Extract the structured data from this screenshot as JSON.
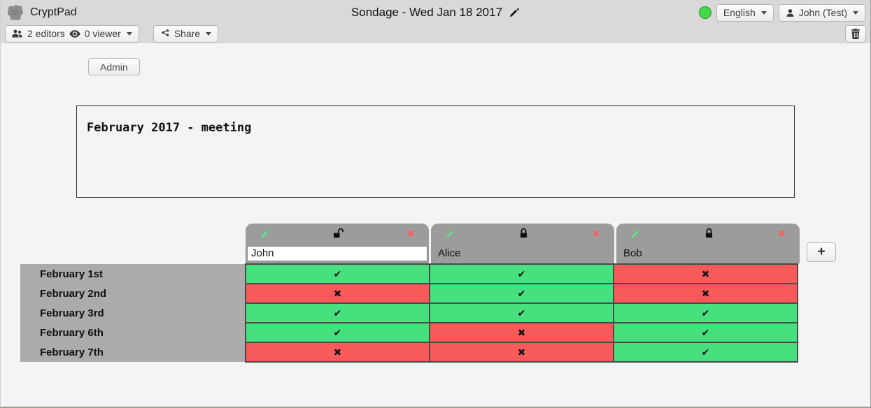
{
  "toolbar": {
    "logo_text": "CryptPad",
    "title": "Sondage - Wed Jan 18 2017",
    "status_color": "#45d945",
    "language_label": "English",
    "user_label": "John (Test)",
    "editors_label": "2 editors",
    "viewers_label": "0 viewer",
    "share_label": "Share"
  },
  "actions": {
    "admin_label": "Admin",
    "add_column_label": "+"
  },
  "description": {
    "text": "February 2017 - meeting"
  },
  "poll": {
    "columns": [
      {
        "name": "John",
        "editable": true,
        "locked": false
      },
      {
        "name": "Alice",
        "editable": false,
        "locked": true
      },
      {
        "name": "Bob",
        "editable": false,
        "locked": true
      }
    ],
    "rows": [
      {
        "label": "February 1st",
        "votes": [
          "yes",
          "yes",
          "no"
        ]
      },
      {
        "label": "February 2nd",
        "votes": [
          "no",
          "yes",
          "no"
        ]
      },
      {
        "label": "February 3rd",
        "votes": [
          "yes",
          "yes",
          "yes"
        ]
      },
      {
        "label": "February 6th",
        "votes": [
          "yes",
          "no",
          "yes"
        ]
      },
      {
        "label": "February 7th",
        "votes": [
          "no",
          "no",
          "yes"
        ]
      }
    ],
    "colors": {
      "yes": "#46e17e",
      "no": "#f85a5a"
    },
    "glyphs": {
      "yes": "✔",
      "no": "✖"
    },
    "icons": {
      "edit_color": "#4fdf7b",
      "remove_glyph": "✖",
      "remove_color": "#f75f5f"
    }
  }
}
